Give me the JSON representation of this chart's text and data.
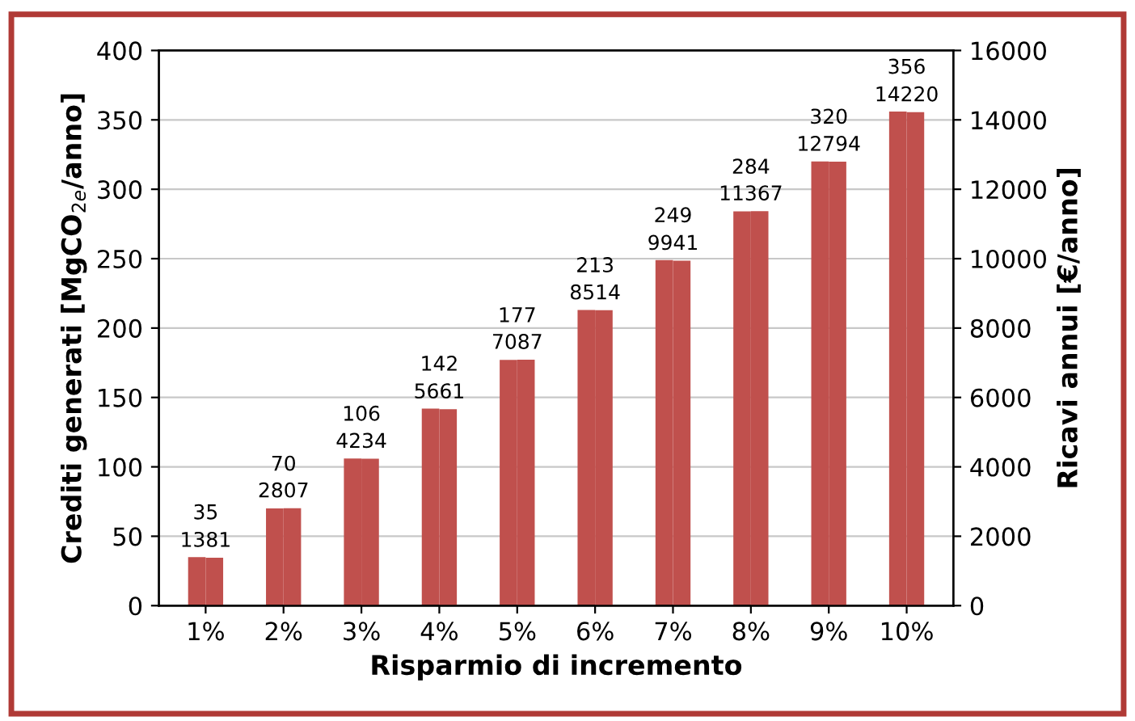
{
  "chart_data": {
    "type": "bar",
    "xlabel": "Risparmio di incremento",
    "ylabel": "Crediti generati [MgCO$_{2e}$/anno]",
    "y2label": "Ricavi annui [€/anno]",
    "categories": [
      "1%",
      "2%",
      "3%",
      "4%",
      "5%",
      "6%",
      "7%",
      "8%",
      "9%",
      "10%"
    ],
    "series": [
      {
        "color": "#c0504d",
        "values": [
          35,
          70,
          106,
          142,
          177,
          213,
          249,
          284,
          320,
          356
        ]
      },
      {
        "color": "#c0504d",
        "axis": "y2",
        "values": [
          1381,
          2807,
          4234,
          5661,
          7087,
          8514,
          9941,
          11367,
          12794,
          14220
        ]
      }
    ],
    "ylim": [
      0,
      400
    ],
    "yticks": [
      0,
      50,
      100,
      150,
      200,
      250,
      300,
      350,
      400
    ],
    "y2lim": [
      0,
      16000
    ],
    "y2ticks": [
      0,
      2000,
      4000,
      6000,
      8000,
      10000,
      12000,
      14000,
      16000
    ],
    "grid": "y",
    "data_labels": true
  }
}
